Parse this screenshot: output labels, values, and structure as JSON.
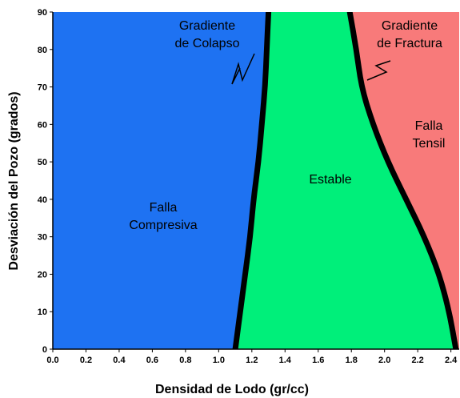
{
  "chart_data": {
    "type": "area",
    "xlabel": "Densidad de Lodo (gr/cc)",
    "ylabel": "Desviación del Pozo (grados)",
    "xlim": [
      0.0,
      2.45
    ],
    "ylim": [
      0,
      90
    ],
    "x_ticks": [
      "0.0",
      "0.2",
      "0.4",
      "0.6",
      "0.8",
      "1.0",
      "1.2",
      "1.4",
      "1.6",
      "1.8",
      "2.0",
      "2.2",
      "2.4"
    ],
    "y_ticks": [
      "0",
      "10",
      "20",
      "30",
      "40",
      "50",
      "60",
      "70",
      "80",
      "90"
    ],
    "series": [
      {
        "name": "Gradiente de Colapso",
        "points": [
          [
            1.1,
            0
          ],
          [
            1.13,
            10
          ],
          [
            1.16,
            20
          ],
          [
            1.19,
            30
          ],
          [
            1.21,
            40
          ],
          [
            1.24,
            50
          ],
          [
            1.26,
            60
          ],
          [
            1.28,
            70
          ],
          [
            1.29,
            80
          ],
          [
            1.3,
            90
          ]
        ]
      },
      {
        "name": "Gradiente de Fractura",
        "points": [
          [
            2.43,
            0
          ],
          [
            2.39,
            10
          ],
          [
            2.33,
            20
          ],
          [
            2.24,
            30
          ],
          [
            2.13,
            40
          ],
          [
            2.02,
            50
          ],
          [
            1.93,
            60
          ],
          [
            1.86,
            70
          ],
          [
            1.83,
            80
          ],
          [
            1.79,
            90
          ]
        ]
      }
    ],
    "regions": {
      "compresiva": "Falla\nCompresiva",
      "estable": "Estable",
      "tensil": "Falla\nTensil"
    },
    "annotations": {
      "colapso": "Gradiente\nde Colapso",
      "fractura": "Gradiente\nde Fractura"
    },
    "colors": {
      "compresiva": "#1e72f2",
      "estable": "#00ef7a",
      "tensil": "#f87a7a",
      "boundary": "#000000"
    },
    "grid": false
  }
}
